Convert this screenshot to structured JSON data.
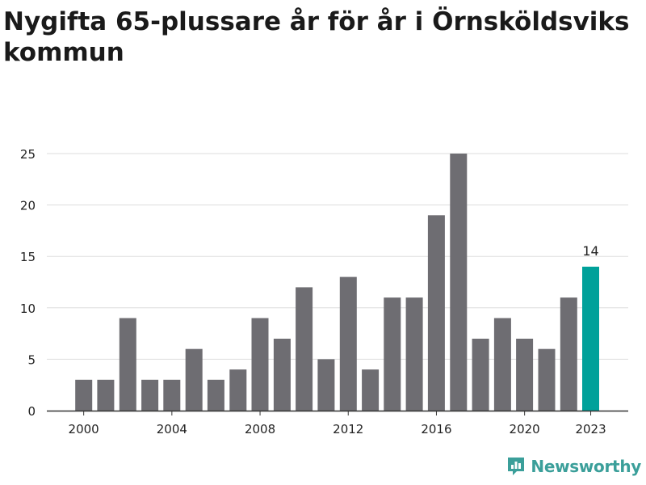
{
  "title": "Nygifta 65-plussare år för år i Örnsköldsviks kommun",
  "brand": {
    "name": "Newsworthy",
    "icon": "newsworthy-logo-icon"
  },
  "colors": {
    "bar": "#6e6d72",
    "highlight": "#00a19a",
    "grid": "#dddddd",
    "text": "#222222"
  },
  "chart_data": {
    "type": "bar",
    "title": "Nygifta 65-plussare år för år i Örnsköldsviks kommun",
    "xlabel": "",
    "ylabel": "",
    "categories": [
      "2000",
      "2001",
      "2002",
      "2003",
      "2004",
      "2005",
      "2006",
      "2007",
      "2008",
      "2009",
      "2010",
      "2011",
      "2012",
      "2013",
      "2014",
      "2015",
      "2016",
      "2017",
      "2018",
      "2019",
      "2020",
      "2021",
      "2022",
      "2023"
    ],
    "values": [
      3,
      3,
      9,
      3,
      3,
      6,
      3,
      4,
      9,
      7,
      12,
      5,
      13,
      4,
      11,
      11,
      19,
      25,
      7,
      9,
      7,
      6,
      11,
      14
    ],
    "x_tick_labels": [
      "2000",
      "2004",
      "2008",
      "2012",
      "2016",
      "2020",
      "2023"
    ],
    "y_ticks": [
      0,
      5,
      10,
      15,
      20,
      25
    ],
    "ylim": [
      0,
      25
    ],
    "grid": true,
    "highlight": {
      "category": "2023",
      "label": "14"
    }
  }
}
